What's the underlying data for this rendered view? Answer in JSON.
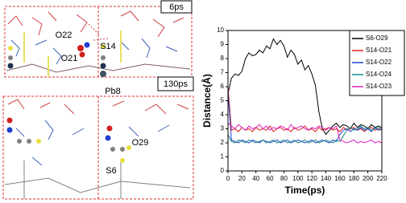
{
  "molecular_panels": [
    {
      "time": "6ps",
      "atoms": [
        "O22",
        "S14",
        "O21",
        "Pb8"
      ]
    },
    {
      "time": "130ps",
      "atoms": [
        "O29",
        "S6"
      ]
    }
  ],
  "chart_data": {
    "type": "line",
    "xlabel": "Time(ps)",
    "ylabel": "Distance(Å)",
    "x": [
      0,
      5,
      10,
      15,
      20,
      25,
      30,
      35,
      40,
      45,
      50,
      55,
      60,
      65,
      70,
      75,
      80,
      85,
      90,
      95,
      100,
      105,
      110,
      115,
      120,
      125,
      130,
      135,
      140,
      145,
      150,
      155,
      160,
      165,
      170,
      175,
      180,
      185,
      190,
      195,
      200,
      205,
      210,
      215,
      220
    ],
    "series": [
      {
        "name": "S6-O29",
        "color": "#000000",
        "values": [
          5.5,
          6.6,
          6.9,
          6.8,
          7.1,
          8.0,
          8.4,
          8.2,
          8.3,
          8.6,
          8.4,
          8.9,
          8.7,
          9.4,
          9.0,
          9.3,
          8.9,
          8.1,
          8.6,
          8.3,
          7.6,
          7.9,
          7.2,
          7.5,
          6.9,
          6.1,
          4.2,
          3.0,
          2.6,
          2.9,
          3.2,
          3.4,
          3.1,
          3.3,
          3.2,
          3.0,
          3.4,
          3.1,
          3.3,
          3.2,
          3.0,
          3.3,
          3.1,
          3.2,
          3.1
        ]
      },
      {
        "name": "S14-O21",
        "color": "#e02020",
        "values": [
          6.0,
          2.9,
          3.0,
          2.8,
          3.1,
          2.9,
          3.0,
          2.8,
          3.1,
          2.9,
          3.0,
          2.9,
          3.2,
          2.8,
          3.0,
          3.1,
          2.9,
          3.0,
          2.8,
          3.1,
          2.9,
          3.0,
          3.2,
          2.9,
          3.0,
          2.8,
          3.1,
          2.9,
          3.0,
          3.1,
          2.9,
          3.0,
          2.8,
          3.1,
          2.9,
          3.0,
          3.1,
          2.9,
          3.0,
          2.8,
          3.0,
          3.1,
          2.9,
          3.0,
          2.9
        ]
      },
      {
        "name": "S14-O22",
        "color": "#2040d0",
        "values": [
          5.6,
          2.2,
          2.1,
          2.0,
          2.2,
          2.1,
          2.0,
          2.2,
          2.1,
          2.0,
          2.2,
          2.1,
          2.0,
          2.1,
          2.2,
          2.0,
          2.1,
          2.2,
          2.0,
          2.1,
          2.2,
          2.1,
          2.0,
          2.1,
          2.2,
          2.0,
          2.1,
          2.2,
          2.1,
          2.0,
          2.2,
          2.1,
          2.6,
          2.9,
          3.0,
          2.8,
          3.0,
          2.9,
          3.1,
          2.9,
          3.0,
          2.8,
          3.1,
          2.9,
          3.0
        ]
      },
      {
        "name": "S14-O24",
        "color": "#1a8a8a",
        "values": [
          2.6,
          2.1,
          2.0,
          2.2,
          2.1,
          2.0,
          2.2,
          2.1,
          2.0,
          2.1,
          2.2,
          2.0,
          2.1,
          2.2,
          2.0,
          2.1,
          2.2,
          2.0,
          2.1,
          2.2,
          2.0,
          2.1,
          2.2,
          2.0,
          2.1,
          2.2,
          2.0,
          2.1,
          2.2,
          2.1,
          2.0,
          2.2,
          2.1,
          2.5,
          2.9,
          3.1,
          2.9,
          3.0,
          3.2,
          3.0,
          3.1,
          2.9,
          3.0,
          3.1,
          3.0
        ]
      },
      {
        "name": "S14-O23",
        "color": "#e020c0",
        "values": [
          3.4,
          3.2,
          3.0,
          3.3,
          3.1,
          2.9,
          3.2,
          3.0,
          3.1,
          3.3,
          3.0,
          3.2,
          2.9,
          3.1,
          3.0,
          3.2,
          3.1,
          2.9,
          3.3,
          3.0,
          3.1,
          3.2,
          3.0,
          2.9,
          3.1,
          3.0,
          3.2,
          3.1,
          2.9,
          3.1,
          3.0,
          3.2,
          2.2,
          2.1,
          2.0,
          2.1,
          2.2,
          2.0,
          2.1,
          2.0,
          2.1,
          2.2,
          2.0,
          2.1,
          2.0
        ]
      }
    ],
    "xlim": [
      0,
      220
    ],
    "xticks": [
      0,
      20,
      40,
      60,
      80,
      100,
      120,
      140,
      160,
      180,
      200,
      220
    ],
    "ylim": [
      0,
      10
    ],
    "yticks": [
      0,
      1,
      2,
      3,
      4,
      5,
      6,
      7,
      8,
      9,
      10
    ],
    "grid": false,
    "legend": "upper right"
  }
}
